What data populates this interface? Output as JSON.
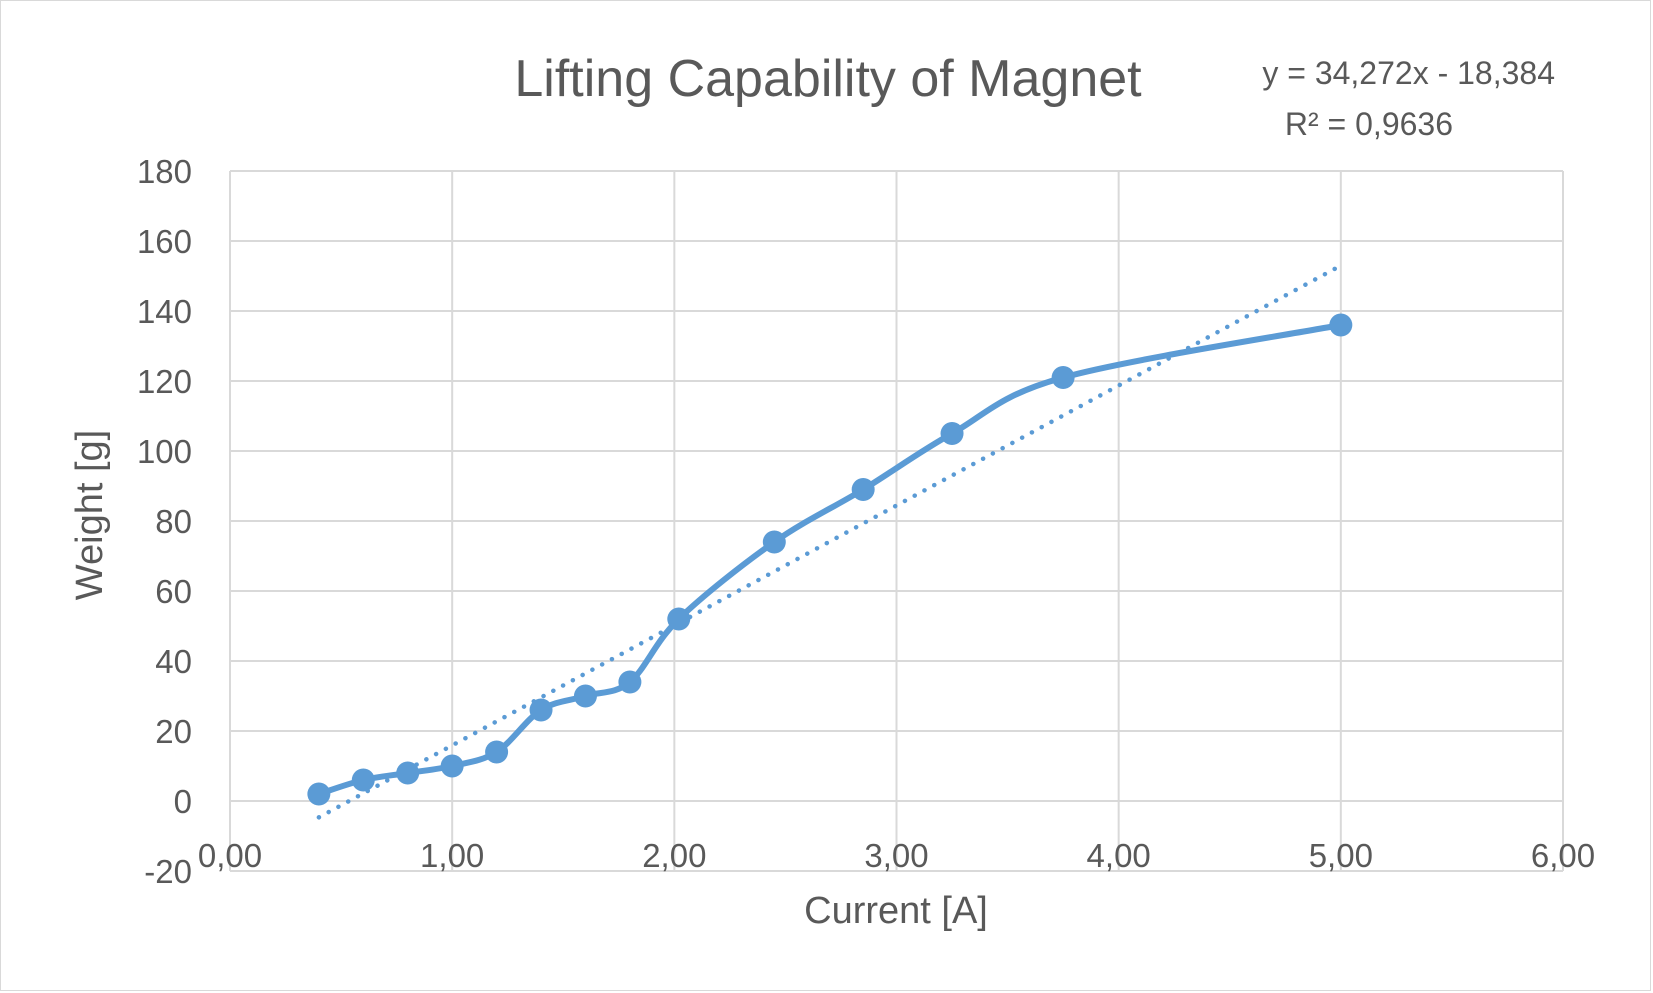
{
  "chart_data": {
    "type": "scatter",
    "title": "Lifting Capability of Magnet",
    "xlabel": "Current [A]",
    "ylabel": "Weight [g]",
    "xlim": [
      0,
      6
    ],
    "ylim": [
      -20,
      180
    ],
    "x_ticks": [
      0,
      1,
      2,
      3,
      4,
      5,
      6
    ],
    "x_tick_labels": [
      "0,00",
      "1,00",
      "2,00",
      "3,00",
      "4,00",
      "5,00",
      "6,00"
    ],
    "y_ticks": [
      -20,
      0,
      20,
      40,
      60,
      80,
      100,
      120,
      140,
      160,
      180
    ],
    "y_tick_labels": [
      "-20",
      "0",
      "20",
      "40",
      "60",
      "80",
      "100",
      "120",
      "140",
      "160",
      "180"
    ],
    "grid": true,
    "legend": "none",
    "series": [
      {
        "x": [
          0.4,
          0.6,
          0.8,
          1.0,
          1.2,
          1.4,
          1.6,
          1.8,
          2.02,
          2.45,
          2.85,
          3.25,
          3.75,
          5.0
        ],
        "y": [
          2,
          6,
          8,
          10,
          14,
          26,
          30,
          34,
          52,
          74,
          89,
          105,
          121,
          136
        ],
        "color": "#5b9bd5",
        "line": "smooth",
        "markers": true
      }
    ],
    "trendline": {
      "type": "linear",
      "slope": 34.272,
      "intercept": -18.384,
      "x_range": [
        0.4,
        5.0
      ],
      "style": "dotted",
      "color": "#5b9bd5",
      "equation_label": "y = 34,272x - 18,384",
      "r2_label": "R² = 0,9636"
    },
    "gridline_color": "#d9d9d9",
    "text_color": "#595959"
  }
}
